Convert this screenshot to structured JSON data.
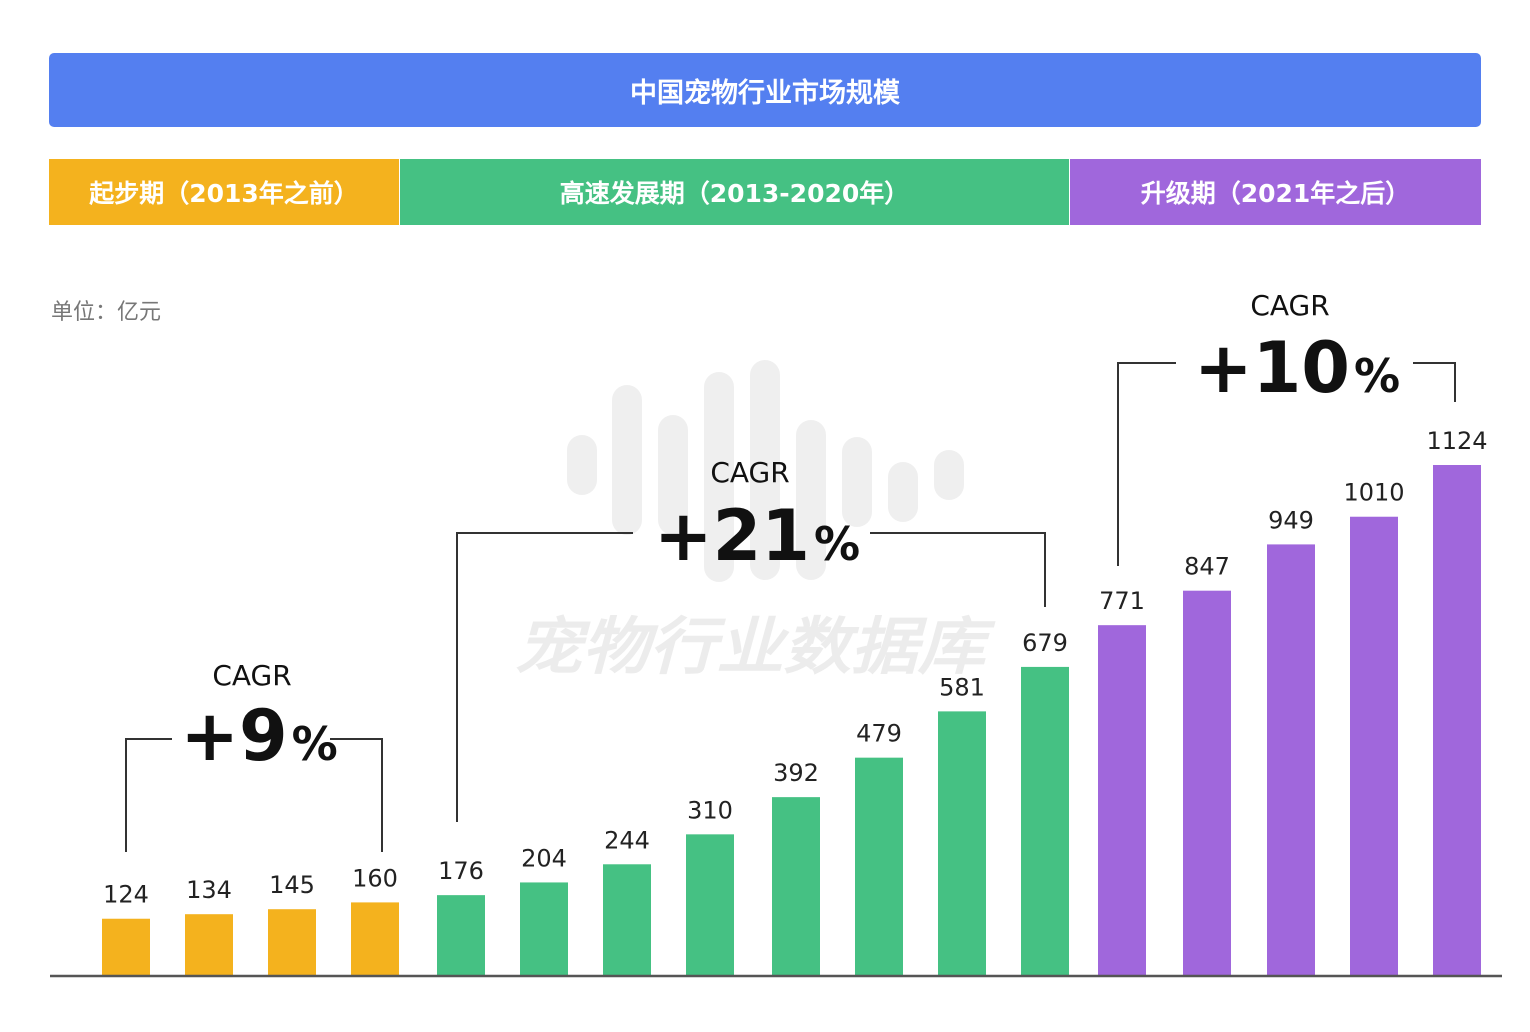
{
  "header": {
    "title": "中国宠物行业市场规模"
  },
  "phases": [
    {
      "label": "起步期（2013年之前）",
      "color": "#f4b21e"
    },
    {
      "label": "高速发展期（2013-2020年）",
      "color": "#45c183"
    },
    {
      "label": "升级期（2021年之后）",
      "color": "#a067dc"
    }
  ],
  "watermark": "宠物行业数据库",
  "chart_data": {
    "type": "bar",
    "unit_label": "单位：亿元",
    "values": [
      124,
      134,
      145,
      160,
      176,
      204,
      244,
      310,
      392,
      479,
      581,
      679,
      771,
      847,
      949,
      1010,
      1124
    ],
    "phase_index": [
      0,
      0,
      0,
      0,
      1,
      1,
      1,
      1,
      1,
      1,
      1,
      1,
      2,
      2,
      2,
      2,
      2
    ],
    "ylim": [
      0,
      1124
    ],
    "grid": false,
    "annotations": [
      {
        "label": "CAGR",
        "value": "+9",
        "suffix": "%",
        "from_bar": 0,
        "to_bar": 3
      },
      {
        "label": "CAGR",
        "value": "+21",
        "suffix": "%",
        "from_bar": 4,
        "to_bar": 11
      },
      {
        "label": "CAGR",
        "value": "+10",
        "suffix": "%",
        "from_bar": 12,
        "to_bar": 16
      }
    ]
  }
}
